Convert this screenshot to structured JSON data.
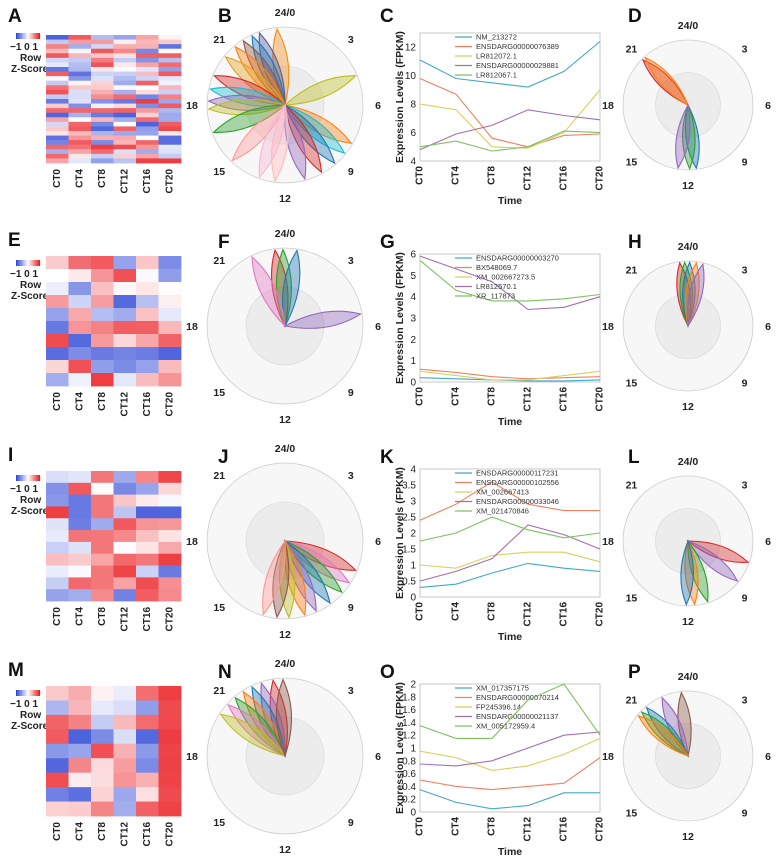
{
  "heatmap_key": {
    "ticks": [
      "−1",
      "0",
      "1"
    ],
    "line1": "Row",
    "line2": "Z-Score"
  },
  "rows": [
    {
      "heatmap": {
        "label": "A",
        "columns": [
          "CT0",
          "CT4",
          "CT8",
          "CT12",
          "CT16",
          "CT20"
        ],
        "n_rows": 28
      },
      "radial": {
        "label": "B",
        "hours": [
          "24/0",
          "3",
          "6",
          "9",
          "12",
          "15",
          "18",
          "21"
        ],
        "petals": [
          {
            "phase": 23.6,
            "color": "#f08c1a"
          },
          {
            "phase": 22.7,
            "color": "#5a5a9a"
          },
          {
            "phase": 22.3,
            "color": "#1f77b4"
          },
          {
            "phase": 21.8,
            "color": "#8c564b"
          },
          {
            "phase": 21.3,
            "color": "#ff7f0e"
          },
          {
            "phase": 20.6,
            "color": "#e0a020"
          },
          {
            "phase": 19.5,
            "color": "#d62728"
          },
          {
            "phase": 18.8,
            "color": "#17becf"
          },
          {
            "phase": 18.2,
            "color": "#9467bd"
          },
          {
            "phase": 17.8,
            "color": "#bcbd22"
          },
          {
            "phase": 16.6,
            "color": "#2ca02c"
          },
          {
            "phase": 14.9,
            "color": "#ff9896"
          },
          {
            "phase": 4.5,
            "color": "#bcbd22"
          },
          {
            "phase": 8.0,
            "color": "#ff7f0e"
          },
          {
            "phase": 8.6,
            "color": "#17becf"
          },
          {
            "phase": 9.3,
            "color": "#1f77b4"
          },
          {
            "phase": 10.1,
            "color": "#d62728"
          },
          {
            "phase": 11.0,
            "color": "#9467bd"
          },
          {
            "phase": 12.5,
            "color": "#ffbbbb"
          },
          {
            "phase": 13.3,
            "color": "#f7b6d2"
          }
        ]
      },
      "line": {
        "label": "C",
        "type": "line",
        "ylabel": "Expression Levels (FPKM)",
        "xlabel": "Time",
        "categories": [
          "CT0",
          "CT4",
          "CT8",
          "CT12",
          "CT16",
          "CT20"
        ],
        "ylim": [
          4,
          13
        ],
        "yticks": [
          4,
          6,
          8,
          10,
          12
        ],
        "series": [
          {
            "name": "NM_213272",
            "color": "#41a9c9",
            "values": [
              11.1,
              9.8,
              9.5,
              9.2,
              10.3,
              12.4
            ]
          },
          {
            "name": "ENSDARG00000076389",
            "color": "#f08060",
            "values": [
              9.8,
              8.7,
              5.6,
              5.0,
              5.8,
              5.9
            ]
          },
          {
            "name": "LR812072.1",
            "color": "#d8d060",
            "values": [
              8.0,
              7.6,
              5.0,
              4.9,
              6.0,
              9.0
            ]
          },
          {
            "name": "ENSDARG00000029881",
            "color": "#a070b0",
            "values": [
              4.8,
              5.9,
              6.5,
              7.6,
              7.2,
              6.9
            ]
          },
          {
            "name": "LR812067.1",
            "color": "#80c060",
            "values": [
              5.0,
              5.4,
              4.7,
              5.0,
              6.1,
              6.0
            ]
          }
        ]
      },
      "radial_avg": {
        "label": "D",
        "hours": [
          "24/0",
          "3",
          "6",
          "9",
          "12",
          "15",
          "18",
          "21"
        ],
        "petals": [
          {
            "phase": 21.0,
            "color": "#d62728"
          },
          {
            "phase": 21.2,
            "color": "#ff7f0e"
          },
          {
            "phase": 11.5,
            "color": "#1f77b4"
          },
          {
            "phase": 11.9,
            "color": "#2ca02c"
          },
          {
            "phase": 12.6,
            "color": "#9467bd"
          }
        ]
      }
    },
    {
      "heatmap": {
        "label": "E",
        "columns": [
          "CT0",
          "CT4",
          "CT8",
          "CT12",
          "CT16",
          "CT20"
        ],
        "n_rows": 10
      },
      "radial": {
        "label": "F",
        "hours": [
          "24/0",
          "3",
          "6",
          "9",
          "12",
          "15",
          "18",
          "21"
        ],
        "petals": [
          {
            "phase": 23.5,
            "color": "#d62728"
          },
          {
            "phase": 23.9,
            "color": "#2ca02c"
          },
          {
            "phase": 0.6,
            "color": "#1f77b4"
          },
          {
            "phase": 22.3,
            "color": "#e377c2"
          },
          {
            "phase": 5.4,
            "color": "#9467bd"
          }
        ]
      },
      "line": {
        "label": "G",
        "type": "line",
        "ylabel": "Expression Levels (FPKM)",
        "xlabel": "Time",
        "categories": [
          "CT0",
          "CT4",
          "CT8",
          "CT12",
          "CT16",
          "CT20"
        ],
        "ylim": [
          0,
          6
        ],
        "yticks": [
          0,
          1,
          2,
          3,
          4,
          5,
          6
        ],
        "series": [
          {
            "name": "ENSDARG00000003270",
            "color": "#41a9c9",
            "values": [
              0.2,
              0.15,
              0.1,
              0.05,
              0.05,
              0.1
            ]
          },
          {
            "name": "BX548069.7",
            "color": "#f08060",
            "values": [
              0.6,
              0.45,
              0.25,
              0.15,
              0.2,
              0.25
            ]
          },
          {
            "name": "XM_002667273.5",
            "color": "#d8d060",
            "values": [
              0.5,
              0.3,
              0.1,
              0.1,
              0.3,
              0.5
            ]
          },
          {
            "name": "LR812570.1",
            "color": "#a070b0",
            "values": [
              5.9,
              5.3,
              4.7,
              3.4,
              3.5,
              4.0
            ]
          },
          {
            "name": "XR_117873",
            "color": "#80c060",
            "values": [
              5.7,
              4.3,
              3.8,
              3.8,
              3.9,
              4.1
            ]
          }
        ]
      },
      "radial_avg": {
        "label": "H",
        "hours": [
          "24/0",
          "3",
          "6",
          "9",
          "12",
          "15",
          "18",
          "21"
        ],
        "petals": [
          {
            "phase": 23.5,
            "color": "#d62728"
          },
          {
            "phase": 23.8,
            "color": "#2ca02c"
          },
          {
            "phase": 0.1,
            "color": "#1f77b4"
          },
          {
            "phase": 0.5,
            "color": "#ff7f0e"
          },
          {
            "phase": 0.9,
            "color": "#9467bd"
          }
        ]
      }
    },
    {
      "heatmap": {
        "label": "I",
        "columns": [
          "CT0",
          "CT4",
          "CT8",
          "CT12",
          "CT16",
          "CT20"
        ],
        "n_rows": 11
      },
      "radial": {
        "label": "J",
        "hours": [
          "24/0",
          "3",
          "6",
          "9",
          "12",
          "15",
          "18",
          "21"
        ],
        "petals": [
          {
            "phase": 7.5,
            "color": "#d62728"
          },
          {
            "phase": 8.2,
            "color": "#e377c2"
          },
          {
            "phase": 8.8,
            "color": "#2ca02c"
          },
          {
            "phase": 9.6,
            "color": "#1f77b4"
          },
          {
            "phase": 10.4,
            "color": "#9467bd"
          },
          {
            "phase": 11.0,
            "color": "#ff7f0e"
          },
          {
            "phase": 11.8,
            "color": "#bcbd22"
          },
          {
            "phase": 12.4,
            "color": "#8c564b"
          },
          {
            "phase": 13.1,
            "color": "#ff9896"
          }
        ]
      },
      "line": {
        "label": "K",
        "type": "line",
        "ylabel": "Expression Levels (FPKM)",
        "xlabel": "Time",
        "categories": [
          "CT0",
          "CT4",
          "CT8",
          "CT12",
          "CT16",
          "CT20"
        ],
        "ylim": [
          0,
          4
        ],
        "yticks": [
          0,
          0.5,
          1,
          1.5,
          2,
          2.5,
          3,
          3.5,
          4
        ],
        "series": [
          {
            "name": "ENSDARG00000117231",
            "color": "#41a9c9",
            "values": [
              0.3,
              0.4,
              0.75,
              1.05,
              0.9,
              0.8
            ]
          },
          {
            "name": "ENSDARG00000102556",
            "color": "#f08060",
            "values": [
              2.4,
              2.9,
              3.6,
              2.9,
              2.7,
              2.7
            ]
          },
          {
            "name": "XM_002667413",
            "color": "#d8d060",
            "values": [
              1.0,
              0.9,
              1.3,
              1.4,
              1.4,
              1.1
            ]
          },
          {
            "name": "ENSDARG00000033046",
            "color": "#a070b0",
            "values": [
              0.5,
              0.8,
              1.2,
              2.25,
              1.95,
              1.5
            ]
          },
          {
            "name": "XM_021470846",
            "color": "#80c060",
            "values": [
              1.75,
              2.0,
              2.5,
              2.1,
              1.85,
              2.0
            ]
          }
        ]
      },
      "radial_avg": {
        "label": "L",
        "hours": [
          "24/0",
          "3",
          "6",
          "9",
          "12",
          "15",
          "18",
          "21"
        ],
        "petals": [
          {
            "phase": 7.3,
            "color": "#d62728"
          },
          {
            "phase": 8.6,
            "color": "#9467bd"
          },
          {
            "phase": 10.8,
            "color": "#2ca02c"
          },
          {
            "phase": 11.6,
            "color": "#ff7f0e"
          },
          {
            "phase": 12.1,
            "color": "#1f77b4"
          }
        ]
      }
    },
    {
      "heatmap": {
        "label": "M",
        "columns": [
          "CT0",
          "CT4",
          "CT8",
          "CT12",
          "CT16",
          "CT20"
        ],
        "n_rows": 9
      },
      "radial": {
        "label": "N",
        "hours": [
          "24/0",
          "3",
          "6",
          "9",
          "12",
          "15",
          "18",
          "21"
        ],
        "petals": [
          {
            "phase": 23.4,
            "color": "#d62728"
          },
          {
            "phase": 22.8,
            "color": "#9467bd"
          },
          {
            "phase": 22.3,
            "color": "#1f77b4"
          },
          {
            "phase": 21.8,
            "color": "#ff7f0e"
          },
          {
            "phase": 21.3,
            "color": "#2ca02c"
          },
          {
            "phase": 20.8,
            "color": "#e377c2"
          },
          {
            "phase": 20.2,
            "color": "#bcbd22"
          },
          {
            "phase": 23.9,
            "color": "#8c564b"
          }
        ]
      },
      "line": {
        "label": "O",
        "type": "line",
        "ylabel": "Expression Levels (FPKM)",
        "xlabel": "Time",
        "categories": [
          "CT0",
          "CT4",
          "CT8",
          "CT12",
          "CT16",
          "CT20"
        ],
        "ylim": [
          0,
          2
        ],
        "yticks": [
          0,
          0.2,
          0.4,
          0.6,
          0.8,
          1,
          1.2,
          1.4,
          1.6,
          1.8,
          2
        ],
        "series": [
          {
            "name": "XM_017357175",
            "color": "#41a9c9",
            "values": [
              0.35,
              0.15,
              0.05,
              0.1,
              0.3,
              0.3
            ]
          },
          {
            "name": "ENSDARG00000070214",
            "color": "#f08060",
            "values": [
              0.5,
              0.4,
              0.35,
              0.4,
              0.45,
              0.85
            ]
          },
          {
            "name": "FP245396.14",
            "color": "#d8d060",
            "values": [
              0.95,
              0.85,
              0.65,
              0.72,
              0.9,
              1.15
            ]
          },
          {
            "name": "ENSDARG00000021137",
            "color": "#a070b0",
            "values": [
              0.75,
              0.72,
              0.8,
              1.0,
              1.2,
              1.25
            ]
          },
          {
            "name": "XM_005172959.4",
            "color": "#80c060",
            "values": [
              1.35,
              1.15,
              1.15,
              1.75,
              2.0,
              1.2
            ]
          }
        ]
      },
      "radial_avg": {
        "label": "P",
        "hours": [
          "24/0",
          "3",
          "6",
          "9",
          "12",
          "15",
          "18",
          "21"
        ],
        "petals": [
          {
            "phase": 23.6,
            "color": "#8c564b"
          },
          {
            "phase": 22.4,
            "color": "#9467bd"
          },
          {
            "phase": 21.3,
            "color": "#1f77b4"
          },
          {
            "phase": 20.9,
            "color": "#2ca02c"
          },
          {
            "phase": 20.6,
            "color": "#ff7f0e"
          }
        ]
      }
    }
  ]
}
